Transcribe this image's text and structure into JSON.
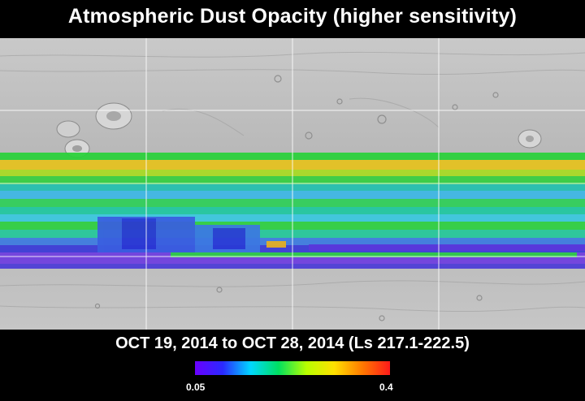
{
  "header": {
    "title": "Atmospheric Dust Opacity (higher sensitivity)"
  },
  "footer": {
    "date_range": "OCT 19, 2014 to OCT 28, 2014 (Ls 217.1-222.5)"
  },
  "colorbar": {
    "min_label": "0.05",
    "max_label": "0.4",
    "min": 0.05,
    "max": 0.4,
    "stops": [
      "#6a00ff",
      "#2a2aff",
      "#00d8ff",
      "#00e060",
      "#b8ff00",
      "#ffe000",
      "#ff7a00",
      "#ff1a1a"
    ]
  },
  "map": {
    "background": "#bcbcbc",
    "colors": {
      "green": "#28d238",
      "yellow_green": "#90e21c",
      "yellow": "#e8c81c",
      "cyan": "#38bce8",
      "teal": "#1cc8a4",
      "blue": "#3a6ee0",
      "deep_blue": "#3030d8",
      "violet": "#6a38e0"
    },
    "features": [
      "volcano",
      "volcano",
      "volcano",
      "volcano"
    ]
  }
}
